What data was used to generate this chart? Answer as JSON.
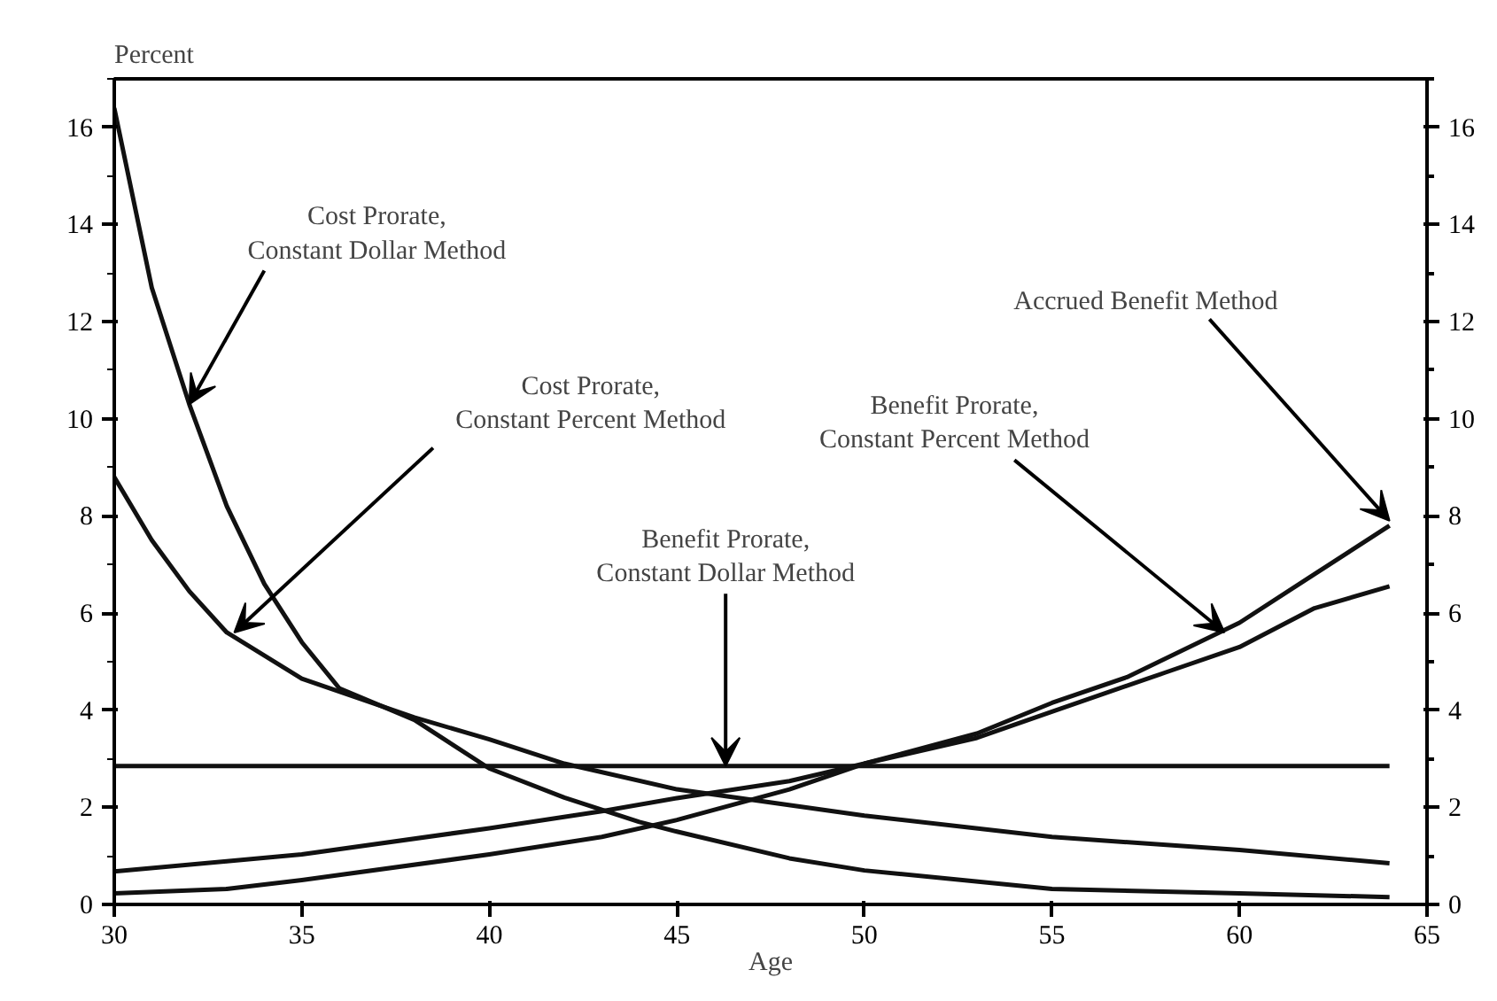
{
  "chart_data": {
    "type": "line",
    "ylabel": "Percent",
    "xlabel": "Age",
    "xlim": [
      30,
      65
    ],
    "xticks": [
      30,
      35,
      40,
      45,
      50,
      55,
      60,
      65
    ],
    "ylim": [
      0,
      17
    ],
    "yticks": [
      0,
      2,
      4,
      6,
      8,
      10,
      12,
      14,
      16
    ],
    "y2lim": [
      0,
      17
    ],
    "y2ticks": [
      0,
      2,
      4,
      6,
      8,
      10,
      12,
      14,
      16
    ],
    "grid": false,
    "marker": "none",
    "line_style": "solid",
    "series": [
      {
        "color": "#111111",
        "x": [
          30,
          31,
          32,
          33,
          34,
          35,
          36,
          38,
          40,
          42,
          44,
          45,
          48,
          50,
          55,
          60,
          64
        ],
        "values": [
          16.4,
          12.7,
          10.3,
          8.2,
          6.6,
          5.4,
          4.45,
          3.8,
          2.8,
          2.2,
          1.7,
          1.5,
          0.95,
          0.7,
          0.32,
          0.23,
          0.15
        ]
      },
      {
        "color": "#111111",
        "x": [
          30,
          31,
          32,
          33,
          35,
          38,
          40,
          42,
          45,
          50,
          55,
          60,
          64
        ],
        "values": [
          8.8,
          7.5,
          6.45,
          5.6,
          4.65,
          3.85,
          3.4,
          2.9,
          2.37,
          1.83,
          1.39,
          1.12,
          0.85
        ]
      },
      {
        "color": "#111111",
        "x": [
          30,
          64
        ],
        "values": [
          2.85,
          2.85
        ]
      },
      {
        "color": "#111111",
        "x": [
          30,
          33,
          35,
          40,
          43,
          45,
          48,
          50,
          53,
          55,
          57,
          60,
          62,
          64
        ],
        "values": [
          0.23,
          0.32,
          0.5,
          1.03,
          1.39,
          1.74,
          2.37,
          2.9,
          3.52,
          4.15,
          4.68,
          5.8,
          6.8,
          7.8
        ]
      },
      {
        "color": "#111111",
        "x": [
          30,
          33,
          35,
          40,
          43,
          45,
          48,
          50,
          53,
          55,
          58,
          60,
          62,
          64
        ],
        "values": [
          0.68,
          0.89,
          1.03,
          1.57,
          1.92,
          2.19,
          2.54,
          2.9,
          3.43,
          3.97,
          4.77,
          5.3,
          6.1,
          6.55
        ]
      }
    ],
    "annotations": [
      {
        "text": "Cost Prorate,\nConstant Dollar Method",
        "x": 32,
        "y": 10.3
      },
      {
        "text": "Cost Prorate,\nConstant Percent Method",
        "x": 33.2,
        "y": 5.6
      },
      {
        "text": "Benefit Prorate,\nConstant Dollar Method",
        "x": 46.3,
        "y": 2.85
      },
      {
        "text": "Benefit Prorate,\nConstant Percent Method",
        "x": 59.6,
        "y": 5.6
      },
      {
        "text": "Accrued Benefit Method",
        "x": 64,
        "y": 7.9
      }
    ]
  }
}
